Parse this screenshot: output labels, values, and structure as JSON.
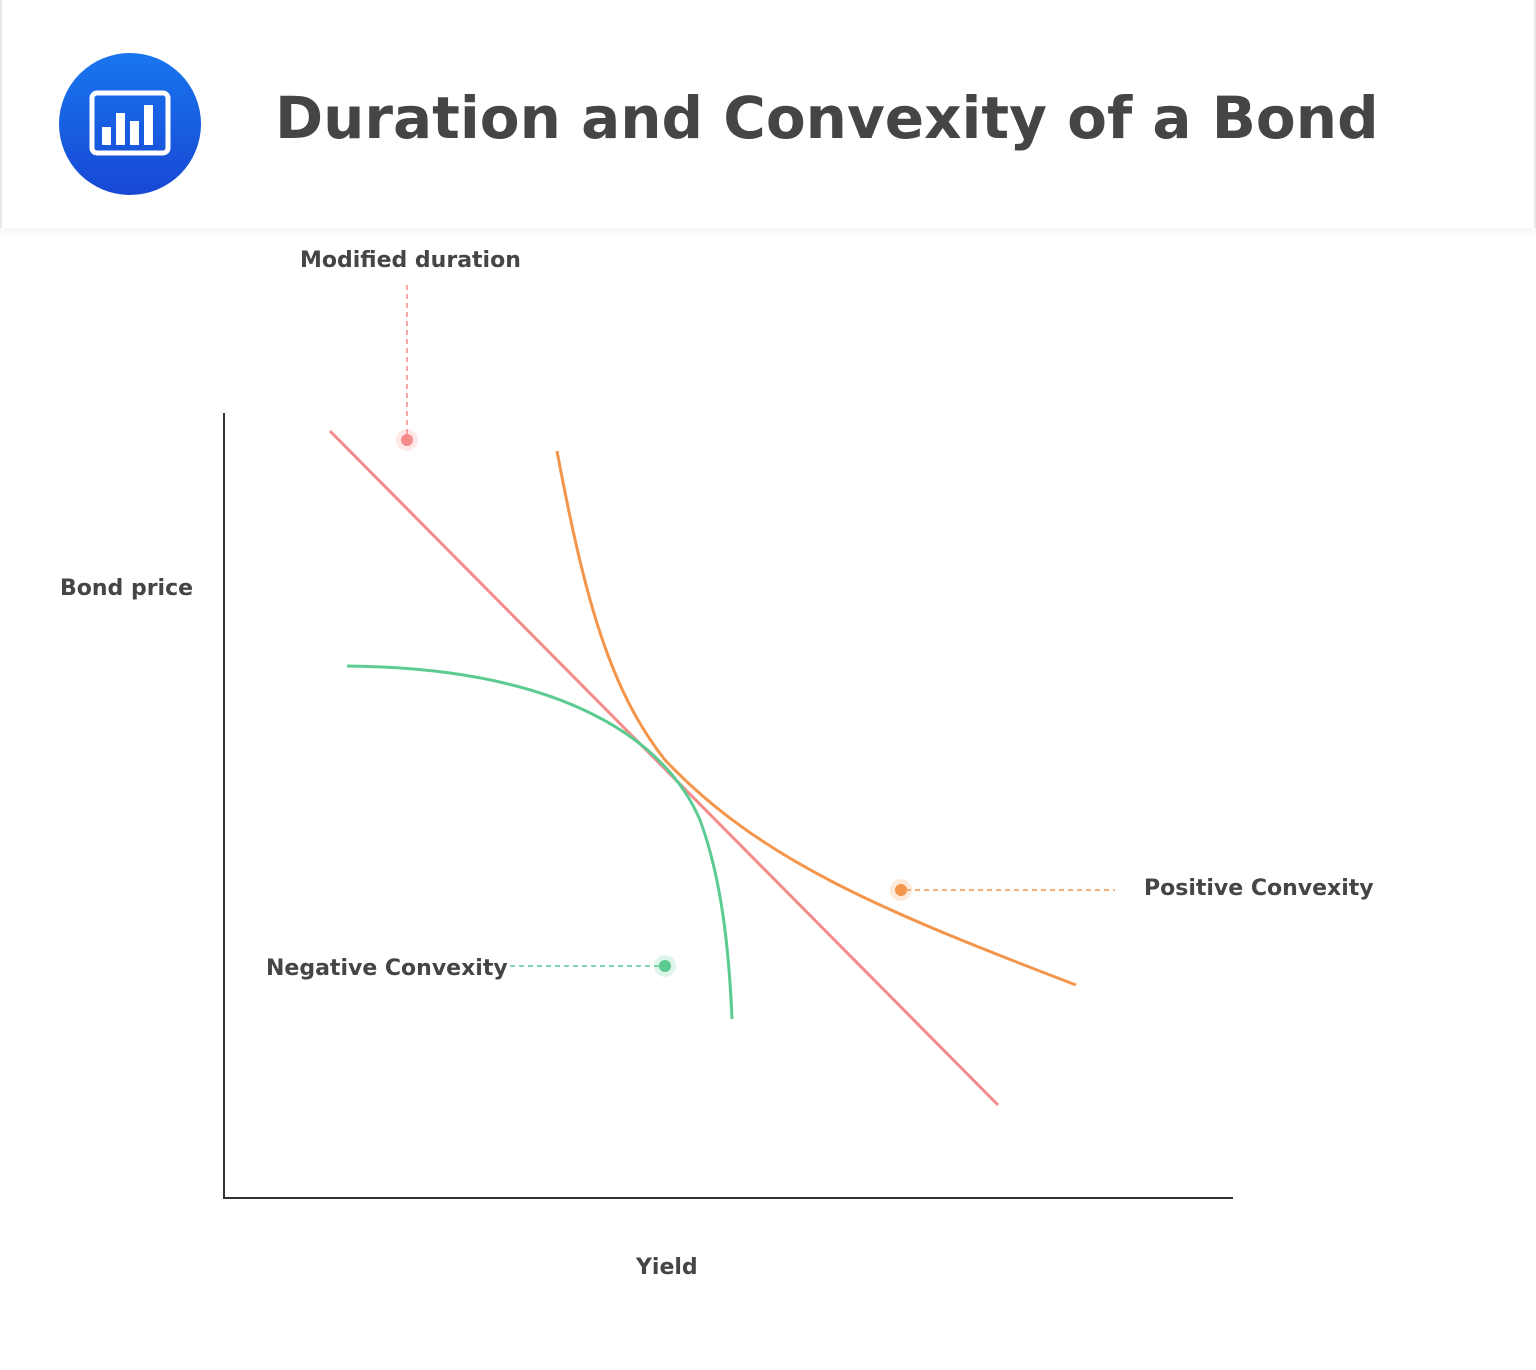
{
  "title": "Duration and Convexity of a Bond",
  "labels": {
    "y_axis": "Bond price",
    "x_axis": "Yield",
    "modified_duration": "Modified duration",
    "positive_convexity": "Positive Convexity",
    "negative_convexity": "Negative Convexity"
  },
  "colors": {
    "header_logo": "#1a5fe0",
    "title_text": "#454545",
    "axis": "#333333",
    "modified_duration": "#f48a8a",
    "positive_convexity": "#f3954a",
    "negative_convexity": "#5ccb92"
  },
  "icons": {
    "logo": "bar-chart-icon"
  }
}
